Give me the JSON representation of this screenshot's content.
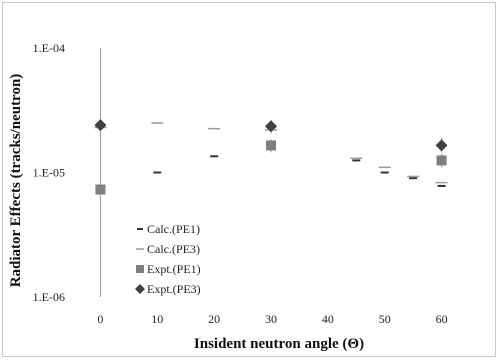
{
  "chart_data": {
    "type": "scatter",
    "title": "",
    "xlabel": "Insident neutron angle (Θ)",
    "ylabel": "Radiator Effects (tracks/neutron)",
    "xlim": [
      -5,
      65
    ],
    "ylim": [
      1e-06,
      0.0001
    ],
    "yscale": "log",
    "x_ticks": [
      "0",
      "10",
      "20",
      "30",
      "40",
      "50",
      "60"
    ],
    "y_ticks": [
      "1.E-04",
      "1.E-05",
      "1.E-06"
    ],
    "grid": false,
    "legend_position": "left-bottom",
    "series": [
      {
        "name": "Calc.(PE1)",
        "marker": "dash-short",
        "color": "#333333",
        "points": [
          {
            "x": 0,
            "y": 7.3e-06
          },
          {
            "x": 10,
            "y": 1e-05
          },
          {
            "x": 20,
            "y": 1.35e-05
          },
          {
            "x": 30,
            "y": 1.55e-05
          },
          {
            "x": 45,
            "y": 1.25e-05
          },
          {
            "x": 50,
            "y": 1e-05
          },
          {
            "x": 55,
            "y": 9e-06
          },
          {
            "x": 60,
            "y": 7.8e-06
          }
        ]
      },
      {
        "name": "Calc.(PE3)",
        "marker": "dash-long",
        "color": "#9a9a9a",
        "points": [
          {
            "x": 0,
            "y": 2.3e-05
          },
          {
            "x": 10,
            "y": 2.5e-05
          },
          {
            "x": 20,
            "y": 2.25e-05
          },
          {
            "x": 30,
            "y": 2.2e-05
          },
          {
            "x": 45,
            "y": 1.3e-05
          },
          {
            "x": 50,
            "y": 1.1e-05
          },
          {
            "x": 55,
            "y": 9.3e-06
          },
          {
            "x": 60,
            "y": 8.3e-06
          }
        ]
      },
      {
        "name": "Expt.(PE1)",
        "marker": "square",
        "color": "#7f7f7f",
        "points": [
          {
            "x": 0,
            "y": 7.3e-06,
            "err_low": 1e-06,
            "err_high": 0.0001
          },
          {
            "x": 30,
            "y": 1.65e-05,
            "err_low": 1.45e-05,
            "err_high": 1.85e-05
          },
          {
            "x": 60,
            "y": 1.25e-05,
            "err_low": 1.1e-05,
            "err_high": 1.42e-05
          }
        ]
      },
      {
        "name": "Expt.(PE3)",
        "marker": "diamond",
        "color": "#404040",
        "points": [
          {
            "x": 0,
            "y": 2.4e-05,
            "err_low": 2.1e-05,
            "err_high": 2.7e-05
          },
          {
            "x": 30,
            "y": 2.35e-05,
            "err_low": 2.05e-05,
            "err_high": 2.65e-05
          },
          {
            "x": 60,
            "y": 1.65e-05,
            "err_low": 1.45e-05,
            "err_high": 1.9e-05
          }
        ]
      }
    ]
  }
}
